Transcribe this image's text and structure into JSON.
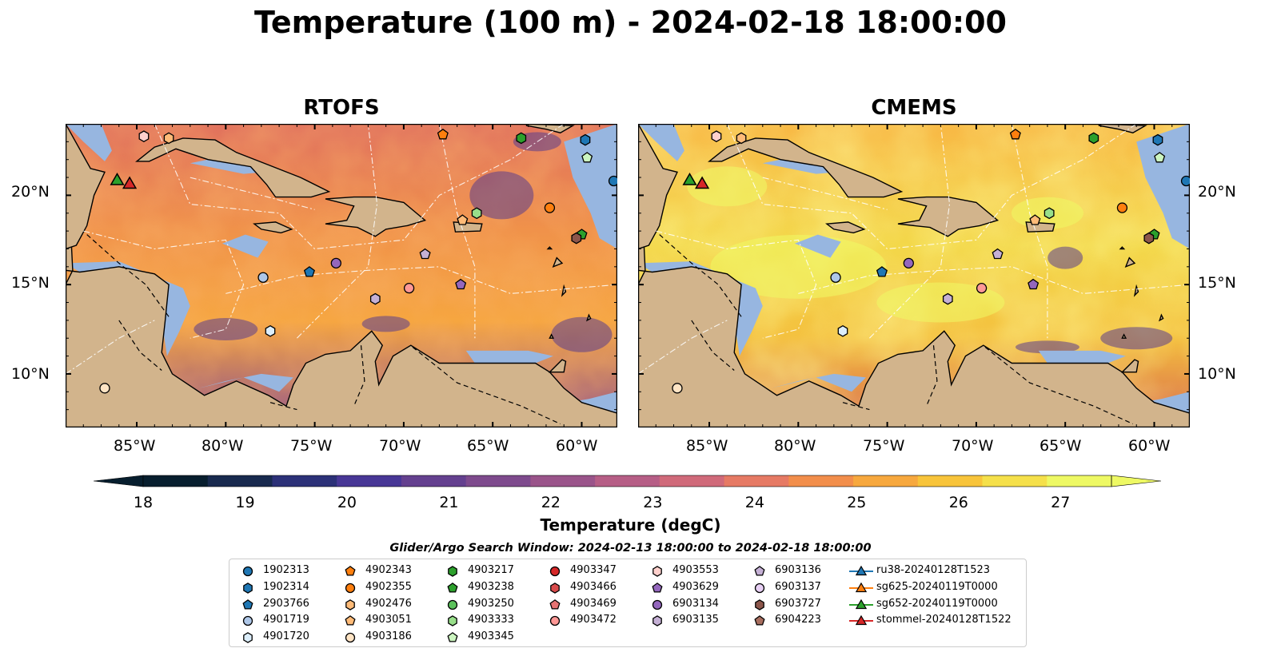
{
  "title": "Temperature (100 m) - 2024-02-18 18:00:00",
  "panels": [
    {
      "title": "RTOFS",
      "palette": "warm"
    },
    {
      "title": "CMEMS",
      "palette": "hot"
    }
  ],
  "axes": {
    "x_ticks": [
      "85°W",
      "80°W",
      "75°W",
      "70°W",
      "65°W",
      "60°W"
    ],
    "y_ticks": [
      "20°N",
      "15°N",
      "10°N"
    ],
    "lon_range": [
      -89,
      -58
    ],
    "lat_range": [
      7,
      24
    ]
  },
  "colorbar": {
    "label": "Temperature (degC)",
    "ticks": [
      "18",
      "19",
      "20",
      "21",
      "22",
      "23",
      "24",
      "25",
      "26",
      "27"
    ],
    "min": 18,
    "max": 27,
    "colors": [
      "#071e2e",
      "#182a4e",
      "#2c3178",
      "#483796",
      "#64408f",
      "#7e4a8d",
      "#9a548a",
      "#b65e86",
      "#d06a7a",
      "#e67a64",
      "#f28e4b",
      "#f7a83e",
      "#f8c43a",
      "#f5e04a",
      "#eef964"
    ]
  },
  "search_window": "Glider/Argo Search Window: 2024-02-13 18:00:00 to 2024-02-18 18:00:00",
  "legend": [
    {
      "label": "1902313",
      "marker": "circle",
      "color": "#1f77b4"
    },
    {
      "label": "1902314",
      "marker": "hexagon",
      "color": "#1f77b4"
    },
    {
      "label": "2903766",
      "marker": "pentagon",
      "color": "#1f77b4"
    },
    {
      "label": "4901719",
      "marker": "circle",
      "color": "#aec7e8"
    },
    {
      "label": "4901720",
      "marker": "hexagon",
      "color": "#dceefb"
    },
    {
      "label": "4902343",
      "marker": "pentagon",
      "color": "#ff7f0e"
    },
    {
      "label": "4902355",
      "marker": "circle",
      "color": "#ff7f0e"
    },
    {
      "label": "4902476",
      "marker": "hexagon",
      "color": "#ffbb78"
    },
    {
      "label": "4903051",
      "marker": "pentagon",
      "color": "#ffbb78"
    },
    {
      "label": "4903186",
      "marker": "circle",
      "color": "#ffe4c4"
    },
    {
      "label": "4903217",
      "marker": "hexagon",
      "color": "#2ca02c"
    },
    {
      "label": "4903238",
      "marker": "pentagon",
      "color": "#2ca02c"
    },
    {
      "label": "4903250",
      "marker": "circle",
      "color": "#5cc25c"
    },
    {
      "label": "4903333",
      "marker": "hexagon",
      "color": "#98df8a"
    },
    {
      "label": "4903345",
      "marker": "pentagon",
      "color": "#ccf5c0"
    },
    {
      "label": "4903347",
      "marker": "circle",
      "color": "#d62728"
    },
    {
      "label": "4903466",
      "marker": "hexagon",
      "color": "#d94b4b"
    },
    {
      "label": "4903469",
      "marker": "pentagon",
      "color": "#e57373"
    },
    {
      "label": "4903472",
      "marker": "circle",
      "color": "#ff9896"
    },
    {
      "label": "4903553",
      "marker": "hexagon",
      "color": "#ffd0cc"
    },
    {
      "label": "4903629",
      "marker": "pentagon",
      "color": "#9467bd"
    },
    {
      "label": "6903134",
      "marker": "circle",
      "color": "#9467bd"
    },
    {
      "label": "6903135",
      "marker": "hexagon",
      "color": "#c5b0d5"
    },
    {
      "label": "6903136",
      "marker": "pentagon",
      "color": "#c5b0d5"
    },
    {
      "label": "6903137",
      "marker": "circle",
      "color": "#e8d0f5"
    },
    {
      "label": "6903727",
      "marker": "hexagon",
      "color": "#8c564b"
    },
    {
      "label": "6904223",
      "marker": "pentagon",
      "color": "#a86e5f"
    },
    {
      "label": "ru38-20240128T1523",
      "marker": "triangle-line",
      "color": "#1f77b4"
    },
    {
      "label": "sg625-20240119T0000",
      "marker": "triangle-line",
      "color": "#ff7f0e"
    },
    {
      "label": "sg652-20240119T0000",
      "marker": "triangle-line",
      "color": "#2ca02c"
    },
    {
      "label": "stommel-20240128T1522",
      "marker": "triangle-line",
      "color": "#d62728"
    }
  ],
  "platforms": [
    {
      "id": "1902313",
      "lon": -58.2,
      "lat": 20.8
    },
    {
      "id": "1902314",
      "lon": -59.8,
      "lat": 23.1
    },
    {
      "id": "2903766",
      "lon": -75.3,
      "lat": 15.7
    },
    {
      "id": "4901719",
      "lon": -77.9,
      "lat": 15.4
    },
    {
      "id": "4901720",
      "lon": -77.5,
      "lat": 12.4
    },
    {
      "id": "4902343",
      "lon": -67.8,
      "lat": 23.4
    },
    {
      "id": "4902355",
      "lon": -61.8,
      "lat": 19.3
    },
    {
      "id": "4902476",
      "lon": -83.2,
      "lat": 23.2
    },
    {
      "id": "4903051",
      "lon": -66.7,
      "lat": 18.6
    },
    {
      "id": "4903186",
      "lon": -86.8,
      "lat": 9.2
    },
    {
      "id": "4903217",
      "lon": -63.4,
      "lat": 23.2
    },
    {
      "id": "4903238",
      "lon": -60.0,
      "lat": 17.8
    },
    {
      "id": "4903333",
      "lon": -65.9,
      "lat": 19.0
    },
    {
      "id": "4903345",
      "lon": -59.7,
      "lat": 22.1
    },
    {
      "id": "4903472",
      "lon": -69.7,
      "lat": 14.8
    },
    {
      "id": "4903553",
      "lon": -84.6,
      "lat": 23.3
    },
    {
      "id": "4903629",
      "lon": -66.8,
      "lat": 15.0
    },
    {
      "id": "6903134",
      "lon": -73.8,
      "lat": 16.2
    },
    {
      "id": "6903135",
      "lon": -71.6,
      "lat": 14.2
    },
    {
      "id": "6903136",
      "lon": -68.8,
      "lat": 16.7
    },
    {
      "id": "6903727",
      "lon": -60.3,
      "lat": 17.6
    }
  ],
  "gliders": [
    {
      "id": "sg652-20240119T0000",
      "lon": -86.1,
      "lat": 20.8,
      "color": "#2ca02c"
    },
    {
      "id": "stommel-20240128T1522",
      "lon": -85.4,
      "lat": 20.6,
      "color": "#d62728"
    }
  ]
}
